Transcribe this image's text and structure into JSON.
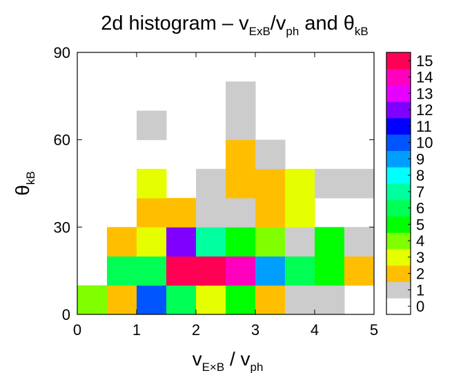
{
  "chart_data": {
    "type": "heatmap",
    "title": {
      "main": "2d histogram – v",
      "sub1": "ExB",
      "mid": "/v",
      "sub2": "ph",
      "and": " and θ",
      "sub3": "kB"
    },
    "xlabel": {
      "main": "v",
      "sub1": "E×B",
      "mid": " / v",
      "sub2": "ph"
    },
    "ylabel": {
      "main": "θ",
      "sub": "kB"
    },
    "xlim": [
      0,
      5
    ],
    "ylim": [
      0,
      90
    ],
    "xticks": [
      "0",
      "1",
      "2",
      "3",
      "4",
      "5"
    ],
    "yticks": [
      "0",
      "30",
      "60",
      "90"
    ],
    "x_bin_edges": [
      0,
      0.5,
      1,
      1.5,
      2,
      2.5,
      3,
      3.5,
      4,
      4.5,
      5
    ],
    "y_bin_edges": [
      0,
      10,
      20,
      30,
      40,
      50,
      60,
      70,
      80,
      90
    ],
    "counts": [
      [
        4,
        2,
        10,
        6,
        3,
        5,
        2,
        1,
        1,
        0
      ],
      [
        0,
        6,
        6,
        15,
        15,
        14,
        9,
        6,
        5,
        2
      ],
      [
        0,
        2,
        3,
        12,
        7,
        5,
        4,
        1,
        5,
        1
      ],
      [
        0,
        0,
        2,
        2,
        1,
        1,
        2,
        3,
        0,
        0
      ],
      [
        0,
        0,
        3,
        0,
        1,
        2,
        2,
        3,
        1,
        1
      ],
      [
        0,
        0,
        0,
        0,
        0,
        2,
        1,
        0,
        0,
        0
      ],
      [
        0,
        0,
        1,
        0,
        0,
        1,
        0,
        0,
        0,
        0
      ],
      [
        0,
        0,
        0,
        0,
        0,
        1,
        0,
        0,
        0,
        0
      ],
      [
        0,
        0,
        0,
        0,
        0,
        0,
        0,
        0,
        0,
        0
      ]
    ],
    "colorbar": {
      "ticks": [
        "0",
        "1",
        "2",
        "3",
        "4",
        "5",
        "6",
        "7",
        "8",
        "9",
        "10",
        "11",
        "12",
        "13",
        "14",
        "15"
      ],
      "colors": [
        "#ffffff",
        "#cccccc",
        "#ffbf00",
        "#e6ff00",
        "#80ff00",
        "#00ff00",
        "#00ff55",
        "#00ff9f",
        "#00ffff",
        "#009fff",
        "#0055ff",
        "#0000ff",
        "#8000ff",
        "#e600ff",
        "#ff00bf",
        "#ff0055"
      ]
    }
  }
}
